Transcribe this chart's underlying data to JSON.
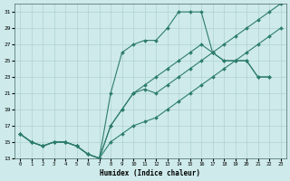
{
  "xlabel": "Humidex (Indice chaleur)",
  "bg_color": "#ceeaea",
  "grid_color": "#aacccc",
  "line_color": "#2e7d6e",
  "xlim": [
    -0.5,
    23.5
  ],
  "ylim": [
    13,
    32
  ],
  "yticks": [
    13,
    15,
    17,
    19,
    21,
    23,
    25,
    27,
    29,
    31
  ],
  "xticks": [
    0,
    1,
    2,
    3,
    4,
    5,
    6,
    7,
    8,
    9,
    10,
    11,
    12,
    13,
    14,
    15,
    16,
    17,
    18,
    19,
    20,
    21,
    22,
    23
  ],
  "line1_x": [
    0,
    1,
    2,
    3,
    4,
    5,
    6,
    7,
    8,
    9,
    10,
    11,
    12,
    13,
    14,
    15,
    16,
    17,
    18,
    19,
    20,
    21,
    22,
    23
  ],
  "line1_y": [
    16,
    15,
    14.5,
    15,
    15,
    14.5,
    13.5,
    13,
    17,
    19,
    21,
    21.5,
    21,
    22,
    23,
    24,
    25,
    26,
    27,
    28,
    29,
    30,
    31,
    32
  ],
  "line2_x": [
    0,
    1,
    2,
    3,
    4,
    5,
    6,
    7,
    8,
    9,
    10,
    11,
    12,
    13,
    14,
    15,
    16,
    17,
    18,
    19,
    20,
    21,
    22
  ],
  "line2_y": [
    16,
    15,
    14.5,
    15,
    15,
    14.5,
    13.5,
    13,
    21,
    26,
    27,
    27.5,
    27.5,
    29,
    31,
    31,
    31,
    26,
    25,
    25,
    25,
    23,
    23
  ],
  "line3_x": [
    0,
    1,
    2,
    3,
    4,
    5,
    6,
    7,
    8,
    9,
    10,
    11,
    12,
    13,
    14,
    15,
    16,
    17,
    18,
    19,
    20,
    21,
    22
  ],
  "line3_y": [
    16,
    15,
    14.5,
    15,
    15,
    14.5,
    13.5,
    13,
    17,
    19,
    21,
    22,
    23,
    24,
    25,
    26,
    27,
    26,
    25,
    25,
    25,
    23,
    23
  ],
  "line4_x": [
    0,
    1,
    2,
    3,
    4,
    5,
    6,
    7,
    8,
    9,
    10,
    11,
    12,
    13,
    14,
    15,
    16,
    17,
    18,
    19,
    20,
    21,
    22,
    23
  ],
  "line4_y": [
    16,
    15,
    14.5,
    15,
    15,
    14.5,
    13.5,
    13,
    15,
    16,
    17,
    17.5,
    18,
    19,
    20,
    21,
    22,
    23,
    24,
    25,
    26,
    27,
    28,
    29
  ]
}
